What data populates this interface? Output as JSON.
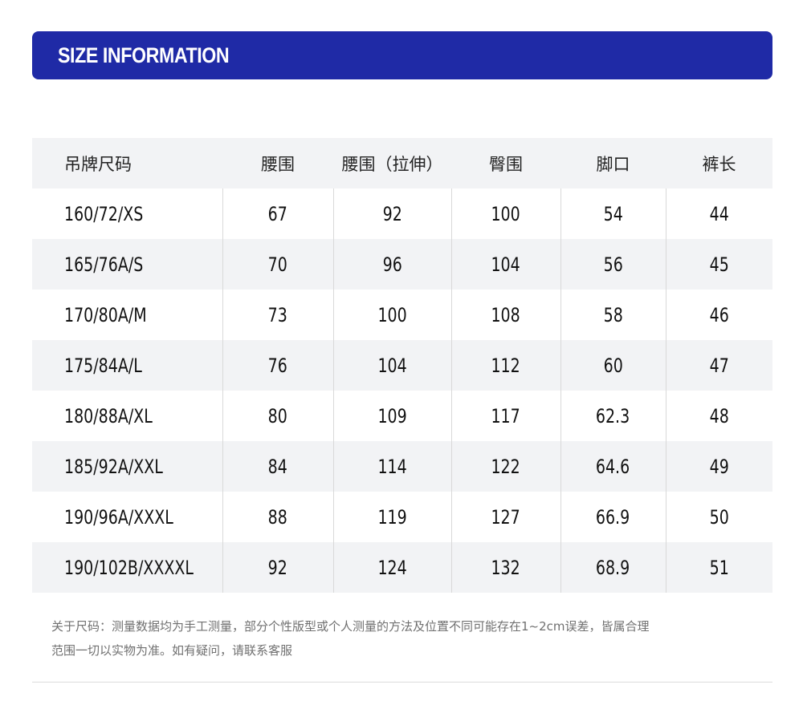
{
  "banner": {
    "title": "SIZE INFORMATION"
  },
  "table": {
    "headers": [
      "吊牌尺码",
      "腰围",
      "腰围（拉伸）",
      "臀围",
      "脚口",
      "裤长"
    ],
    "rows": [
      [
        "160/72/XS",
        "67",
        "92",
        "100",
        "54",
        "44"
      ],
      [
        "165/76A/S",
        "70",
        "96",
        "104",
        "56",
        "45"
      ],
      [
        "170/80A/M",
        "73",
        "100",
        "108",
        "58",
        "46"
      ],
      [
        "175/84A/L",
        "76",
        "104",
        "112",
        "60",
        "47"
      ],
      [
        "180/88A/XL",
        "80",
        "109",
        "117",
        "62.3",
        "48"
      ],
      [
        "185/92A/XXL",
        "84",
        "114",
        "122",
        "64.6",
        "49"
      ],
      [
        "190/96A/XXXL",
        "88",
        "119",
        "127",
        "66.9",
        "50"
      ],
      [
        "190/102B/XXXXL",
        "92",
        "124",
        "132",
        "68.9",
        "51"
      ]
    ]
  },
  "note": {
    "line1": "关于尺码：测量数据均为手工测量，部分个性版型或个人测量的方法及位置不同可能存在1~2cm误差，皆属合理",
    "line2": "范围一切以实物为准。如有疑问，请联系客服"
  },
  "colors": {
    "banner": "#1f2aa6",
    "row_stripe": "#f2f3f5",
    "note_text": "#707070"
  }
}
